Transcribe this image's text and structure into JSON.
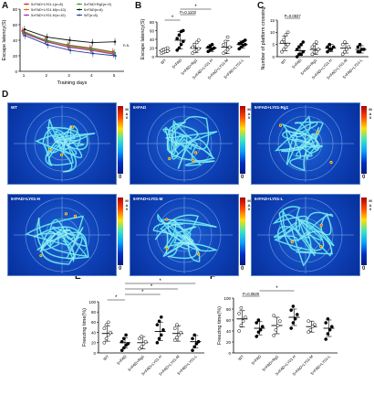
{
  "panel_letters": [
    "A",
    "B",
    "C",
    "D",
    "E",
    "F"
  ],
  "colors": {
    "wt": "#1f3fa0",
    "fad": "#111111",
    "rg1": "#2fa02f",
    "h": "#9a2fb5",
    "m": "#d96a1c",
    "l": "#d62728",
    "sig": "#111111"
  },
  "chart_data": [
    {
      "id": "A",
      "type": "line",
      "xlabel": "Training days",
      "ylabel": "Escape latency(S)",
      "x": [
        1,
        2,
        3,
        4,
        5
      ],
      "ylim": [
        0,
        80
      ],
      "yticks": [
        0,
        20,
        40,
        60,
        80
      ],
      "legend": "top-left",
      "series": [
        {
          "name": "5×FAD+LY01-L(n=8)",
          "values": [
            52,
            40,
            34,
            30,
            25
          ]
        },
        {
          "name": "5×FAD+LY01-M(n=10)",
          "values": [
            50,
            39,
            32,
            28,
            23
          ]
        },
        {
          "name": "5×FAD+LY01-H(n=10)",
          "values": [
            49,
            38,
            31,
            27,
            22
          ]
        },
        {
          "name": "5×FAD+Rg1(n=9)",
          "values": [
            50,
            40,
            33,
            29,
            24
          ]
        },
        {
          "name": "5×FAD(n=8)",
          "values": [
            54,
            44,
            40,
            37,
            38
          ]
        },
        {
          "name": "WT(n=8)",
          "values": [
            46,
            34,
            27,
            23,
            20
          ]
        }
      ],
      "annotations": [
        "n.s."
      ]
    },
    {
      "id": "B",
      "type": "scatter",
      "ylabel": "Escape latency(S)",
      "categories": [
        "WT",
        "5×FAD",
        "5×FAD+Rg1",
        "5×FAD+LY01-H",
        "5×FAD+LY01-M",
        "5×FAD+LY01-L"
      ],
      "ylim": [
        0,
        80
      ],
      "yticks": [
        0,
        20,
        40,
        60,
        80
      ],
      "means": [
        14,
        38,
        20,
        20,
        22,
        28
      ],
      "sd": [
        5,
        20,
        11,
        8,
        15,
        8
      ],
      "points": [
        [
          8,
          10,
          12,
          13,
          14,
          16,
          18,
          20
        ],
        [
          15,
          20,
          28,
          35,
          42,
          50,
          58,
          60
        ],
        [
          8,
          12,
          15,
          18,
          22,
          28,
          33,
          38
        ],
        [
          12,
          15,
          17,
          20,
          22,
          24,
          28
        ],
        [
          8,
          12,
          16,
          22,
          28,
          35,
          45
        ],
        [
          18,
          22,
          26,
          28,
          30,
          32,
          35,
          38
        ]
      ],
      "significance": [
        {
          "from": 0,
          "to": 1,
          "label": "*"
        },
        {
          "from": 1,
          "to": 2,
          "label": "P=0.1103"
        },
        {
          "from": 1,
          "to": 3,
          "label": "*"
        }
      ]
    },
    {
      "id": "C",
      "type": "scatter",
      "ylabel": "Number of platform crossing",
      "categories": [
        "WT",
        "5×FAD",
        "5×FAD+Rg1",
        "5×FAD+LY01-H",
        "5×FAD+LY01-M",
        "5×FAD+LY01-L"
      ],
      "ylim": [
        0,
        15
      ],
      "yticks": [
        0,
        5,
        10,
        15
      ],
      "means": [
        5.5,
        2.5,
        3,
        3.5,
        3.5,
        3
      ],
      "sd": [
        3,
        2,
        2,
        1.5,
        2,
        1.5
      ],
      "points": [
        [
          2,
          3,
          4,
          5,
          6,
          7,
          9,
          10
        ],
        [
          0,
          1,
          1,
          2,
          3,
          4,
          5,
          6
        ],
        [
          1,
          2,
          2,
          3,
          4,
          5,
          6
        ],
        [
          2,
          3,
          3,
          4,
          4,
          5
        ],
        [
          1,
          2,
          3,
          4,
          5,
          6
        ],
        [
          2,
          2,
          3,
          3,
          4,
          5
        ]
      ],
      "significance": [
        {
          "from": 0,
          "to": 1,
          "label": "P=0.0837"
        }
      ]
    },
    {
      "id": "E",
      "type": "scatter",
      "ylabel": "Freezing time(%)",
      "categories": [
        "WT",
        "5×FAD",
        "5×FAD+Rg1",
        "5×FAD+LY01-H",
        "5×FAD+LY01-M",
        "5×FAD+LY01-L"
      ],
      "ylim": [
        0,
        100
      ],
      "yticks": [
        0,
        20,
        40,
        60,
        80,
        100
      ],
      "means": [
        38,
        20,
        20,
        42,
        38,
        22
      ],
      "sd": [
        15,
        10,
        12,
        18,
        15,
        12
      ],
      "points": [
        [
          20,
          28,
          35,
          40,
          48,
          55,
          60
        ],
        [
          5,
          10,
          15,
          18,
          22,
          28,
          35
        ],
        [
          8,
          12,
          18,
          22,
          28,
          32
        ],
        [
          20,
          28,
          35,
          45,
          55,
          62,
          70
        ],
        [
          25,
          30,
          35,
          40,
          48,
          55
        ],
        [
          5,
          12,
          18,
          22,
          28,
          35
        ]
      ],
      "significance": [
        {
          "from": 0,
          "to": 1,
          "label": "*"
        },
        {
          "from": 1,
          "to": 3,
          "label": "*"
        },
        {
          "from": 1,
          "to": 4,
          "label": "*"
        },
        {
          "from": 1,
          "to": 5,
          "label": "*"
        }
      ]
    },
    {
      "id": "F",
      "type": "scatter",
      "ylabel": "Freezing time(%)",
      "categories": [
        "WT",
        "5×FAD",
        "5×FAD+Rg1",
        "5×FAD+LY01-H",
        "5×FAD+LY01-M",
        "5×FAD+LY01-L"
      ],
      "ylim": [
        0,
        100
      ],
      "yticks": [
        0,
        20,
        40,
        60,
        80,
        100
      ],
      "means": [
        62,
        45,
        50,
        65,
        48,
        45
      ],
      "sd": [
        15,
        12,
        15,
        15,
        10,
        15
      ],
      "points": [
        [
          40,
          50,
          58,
          65,
          72,
          82
        ],
        [
          30,
          38,
          42,
          48,
          55,
          60
        ],
        [
          32,
          42,
          50,
          58,
          68
        ],
        [
          45,
          55,
          62,
          70,
          78,
          85
        ],
        [
          38,
          42,
          48,
          52,
          58
        ],
        [
          25,
          35,
          42,
          48,
          55,
          62
        ]
      ],
      "significance": [
        {
          "from": 0,
          "to": 1,
          "label": "P=0.0629"
        },
        {
          "from": 1,
          "to": 3,
          "label": "*"
        }
      ]
    }
  ],
  "heatmaps": [
    {
      "title": "WT",
      "seed": 3
    },
    {
      "title": "5×FAD",
      "seed": 7
    },
    {
      "title": "5×FAD+LY01-Rg1",
      "seed": 11
    },
    {
      "title": "5×FAD+LY01-H",
      "seed": 17
    },
    {
      "title": "5×FAD+LY01-M",
      "seed": 23
    },
    {
      "title": "5×FAD+LY01-L",
      "seed": 29
    }
  ],
  "colorbar": {
    "max_label": "MAX",
    "min_label": "0"
  }
}
